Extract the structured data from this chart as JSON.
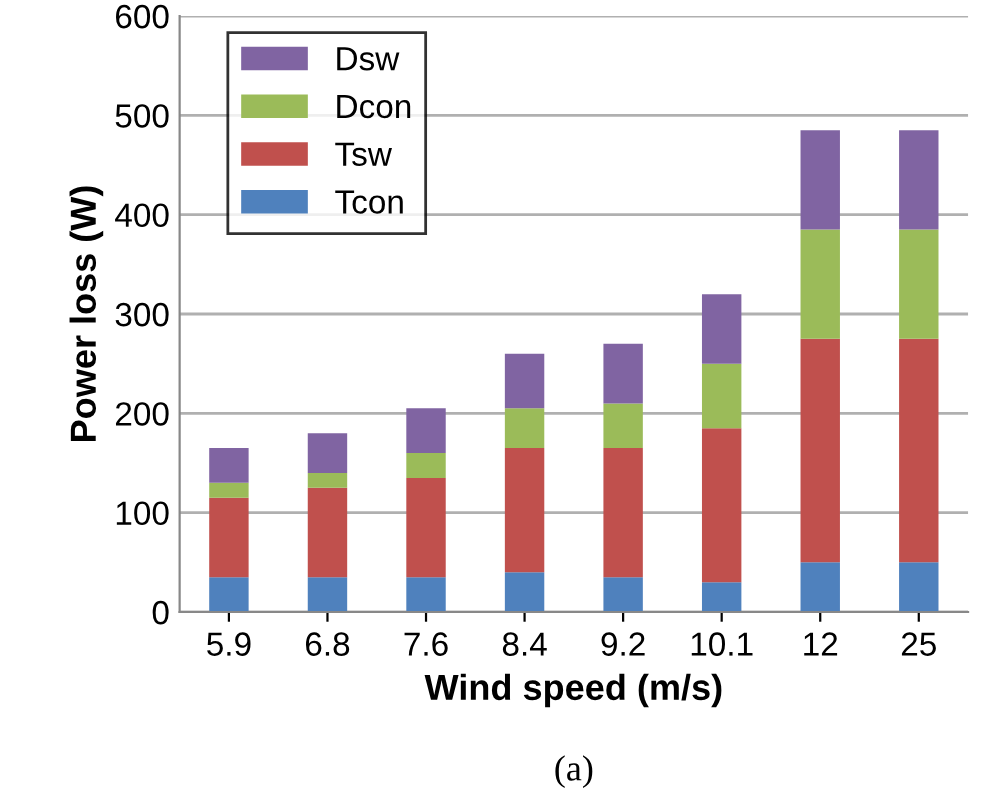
{
  "chart_data": {
    "type": "bar",
    "stacked": true,
    "xlabel": "Wind speed (m/s)",
    "ylabel": "Power loss (W)",
    "categories": [
      "5.9",
      "6.8",
      "7.6",
      "8.4",
      "9.2",
      "10.1",
      "12",
      "25"
    ],
    "series": [
      {
        "name": "Tcon",
        "color": "#4f81bd",
        "values": [
          35,
          35,
          35,
          40,
          35,
          30,
          50,
          50
        ]
      },
      {
        "name": "Tsw",
        "color": "#c0504d",
        "values": [
          80,
          90,
          100,
          125,
          130,
          155,
          225,
          225
        ]
      },
      {
        "name": "Dcon",
        "color": "#9bbb59",
        "values": [
          15,
          15,
          25,
          40,
          45,
          65,
          110,
          110
        ]
      },
      {
        "name": "Dsw",
        "color": "#8064a2",
        "values": [
          35,
          40,
          45,
          55,
          60,
          70,
          100,
          100
        ]
      }
    ],
    "ylim": [
      0,
      600
    ],
    "yticks": [
      0,
      100,
      200,
      300,
      400,
      500,
      600
    ],
    "grid": "y",
    "legend": "top left",
    "annotations": [
      "(a)"
    ]
  }
}
